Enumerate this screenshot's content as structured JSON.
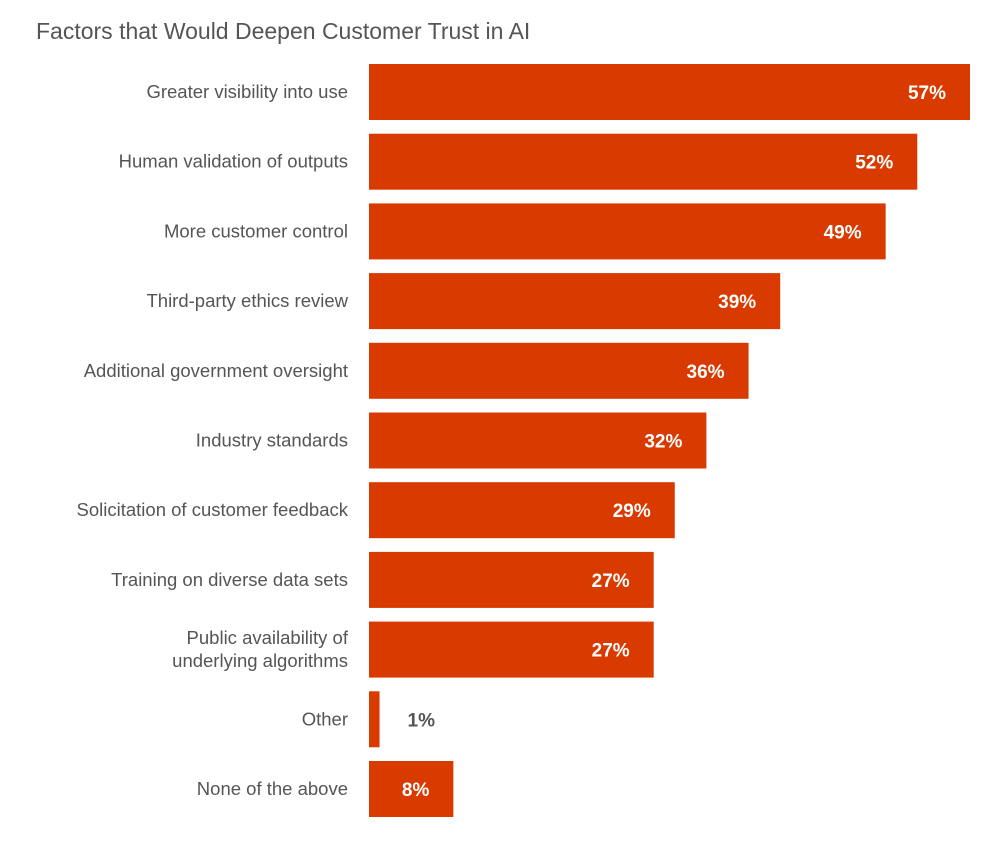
{
  "chart_data": {
    "type": "bar",
    "orientation": "horizontal",
    "title": "Factors that Would Deepen Customer Trust in AI",
    "categories": [
      "Greater visibility into use",
      "Human validation of outputs",
      "More customer control",
      "Third-party ethics review",
      "Additional government oversight",
      "Industry standards",
      "Solicitation of customer feedback",
      "Training on diverse data sets",
      "Public availability of\nunderlying algorithms",
      "Other",
      "None of the above"
    ],
    "values": [
      57,
      52,
      49,
      39,
      36,
      32,
      29,
      27,
      27,
      1,
      8
    ],
    "value_labels": [
      "57%",
      "52%",
      "49%",
      "39%",
      "36%",
      "32%",
      "29%",
      "27%",
      "27%",
      "1%",
      "8%"
    ],
    "unit": "%",
    "xlim": [
      0,
      57
    ],
    "grid": false,
    "legend": "none",
    "colors": {
      "bar": "#D83A00",
      "label_inside": "#ffffff",
      "label_outside": "#555555",
      "text": "#555555"
    }
  }
}
